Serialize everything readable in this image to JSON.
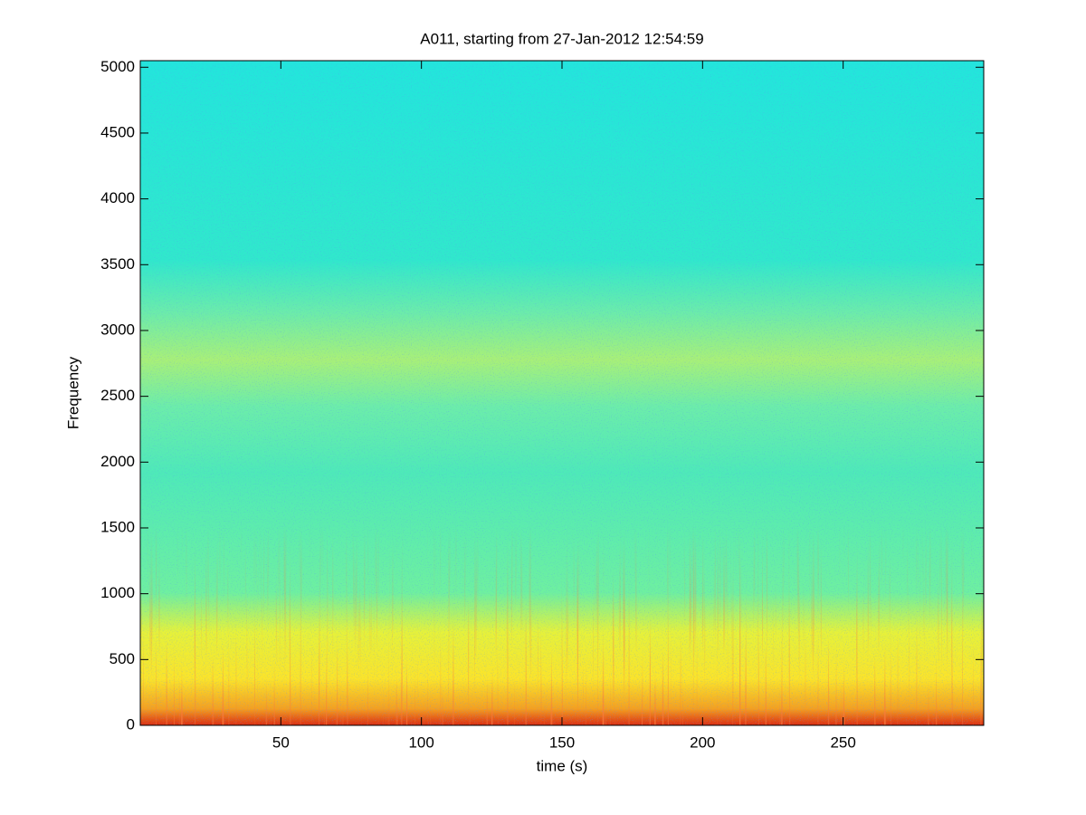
{
  "chart_data": {
    "type": "spectrogram",
    "title": "A011, starting from 27-Jan-2012 12:54:59",
    "x_label": "time (s)",
    "y_label": "Frequency",
    "xlim": [
      0,
      300
    ],
    "xticks": [
      50,
      100,
      150,
      200,
      250
    ],
    "ylim": [
      0,
      5050
    ],
    "yticks": [
      0,
      500,
      1000,
      1500,
      2000,
      2500,
      3000,
      3500,
      4000,
      4500,
      5000
    ],
    "grid": false
  }
}
